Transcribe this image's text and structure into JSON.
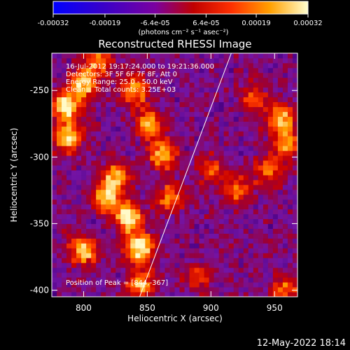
{
  "colorbar": {
    "tick_labels": [
      "-0.00032",
      "-0.00019",
      "-6.4e-05",
      "6.4e-05",
      "0.00019",
      "0.00032"
    ],
    "tick_values": [
      -0.00032,
      -0.00019,
      -6.4e-05,
      6.4e-05,
      0.00019,
      0.00032
    ],
    "range": [
      -0.00032,
      0.00032
    ],
    "units_label": "(photons cm⁻² s⁻¹ asec⁻²)"
  },
  "chart_data": {
    "type": "heatmap",
    "title": "Reconstructed RHESSI Image",
    "xlabel": "Heliocentric X (arcsec)",
    "ylabel": "Heliocentric Y (arcsec)",
    "xlim": [
      775,
      968
    ],
    "ylim": [
      -405,
      -222
    ],
    "x_ticks": [
      800,
      850,
      900,
      950
    ],
    "x_tick_labels": [
      "800",
      "850",
      "900",
      "950"
    ],
    "y_ticks": [
      -400,
      -350,
      -300,
      -250
    ],
    "y_tick_labels": [
      "-400",
      "-350",
      "-300",
      "-250"
    ],
    "limb_line": [
      [
        844,
        -405
      ],
      [
        916,
        -222
      ]
    ],
    "annotations": [
      "16-Jul-2012 19:17:24.000 to 19:21:36.000",
      "Detectors: 3F 5F 6F 7F 8F, Att 0",
      "Energy Range: 25.0 - 50.0 keV",
      "Clean    Total counts: 3.25E+03"
    ],
    "peak_text": "Position of Peak = [844,-367]",
    "peak": [
      844,
      -367
    ],
    "bright_regions": [
      {
        "x": 786,
        "y": -262,
        "level": 0.95
      },
      {
        "x": 788,
        "y": -285,
        "level": 0.85
      },
      {
        "x": 800,
        "y": -245,
        "level": 0.8
      },
      {
        "x": 812,
        "y": -228,
        "level": 0.6
      },
      {
        "x": 840,
        "y": -250,
        "level": 0.75
      },
      {
        "x": 852,
        "y": -275,
        "level": 0.7
      },
      {
        "x": 862,
        "y": -298,
        "level": 0.75
      },
      {
        "x": 844,
        "y": -367,
        "level": 1.0
      },
      {
        "x": 835,
        "y": -345,
        "level": 0.85
      },
      {
        "x": 818,
        "y": -330,
        "level": 0.8
      },
      {
        "x": 825,
        "y": -315,
        "level": 0.7
      },
      {
        "x": 800,
        "y": -370,
        "level": 0.8
      },
      {
        "x": 845,
        "y": -395,
        "level": 0.75
      },
      {
        "x": 868,
        "y": -330,
        "level": 0.6
      },
      {
        "x": 955,
        "y": -270,
        "level": 0.8
      },
      {
        "x": 960,
        "y": -290,
        "level": 0.7
      },
      {
        "x": 945,
        "y": -310,
        "level": 0.6
      },
      {
        "x": 920,
        "y": -325,
        "level": 0.55
      },
      {
        "x": 900,
        "y": -310,
        "level": 0.5
      },
      {
        "x": 935,
        "y": -255,
        "level": 0.45
      },
      {
        "x": 958,
        "y": -400,
        "level": 0.55
      },
      {
        "x": 890,
        "y": -390,
        "level": 0.4
      }
    ]
  },
  "timestamp": "12-May-2022 18:14"
}
